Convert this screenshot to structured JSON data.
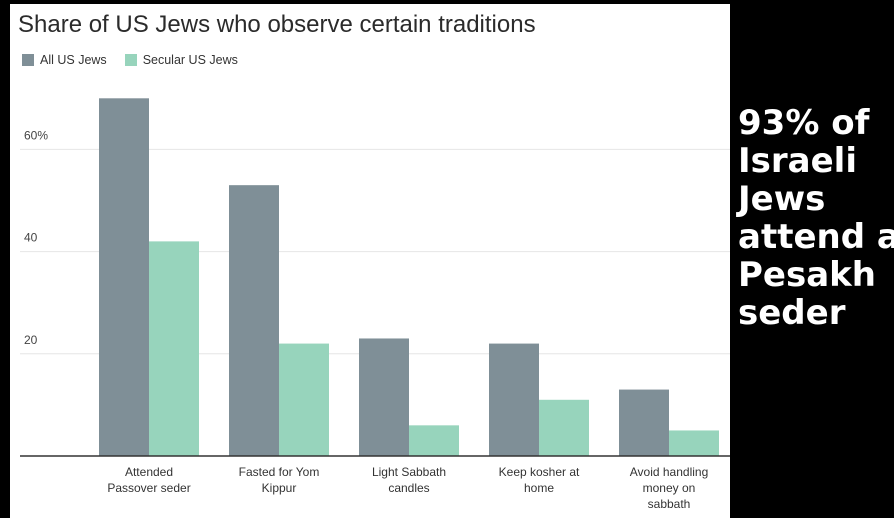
{
  "chart_data": {
    "type": "bar",
    "title": "Share of US Jews who observe certain traditions",
    "categories": [
      [
        "Attended",
        "Passover seder"
      ],
      [
        "Fasted for Yom",
        "Kippur"
      ],
      [
        "Light Sabbath",
        "candles"
      ],
      [
        "Keep kosher at",
        "home"
      ],
      [
        "Avoid handling",
        "money on",
        "sabbath"
      ]
    ],
    "series": [
      {
        "name": "All US Jews",
        "color": "#7f8f97",
        "values": [
          70,
          53,
          23,
          22,
          13
        ]
      },
      {
        "name": "Secular US Jews",
        "color": "#97d4bc",
        "values": [
          42,
          22,
          6,
          11,
          5
        ]
      }
    ],
    "yticks": [
      {
        "value": 20,
        "label": "20"
      },
      {
        "value": 40,
        "label": "40"
      },
      {
        "value": 60,
        "label": "60%"
      }
    ],
    "ylim": [
      0,
      70
    ],
    "grid": true,
    "legend_position": "top-left"
  },
  "side_text": [
    "93% of",
    "Israeli",
    "Jews",
    "attend a",
    "Pesakh",
    "seder"
  ]
}
